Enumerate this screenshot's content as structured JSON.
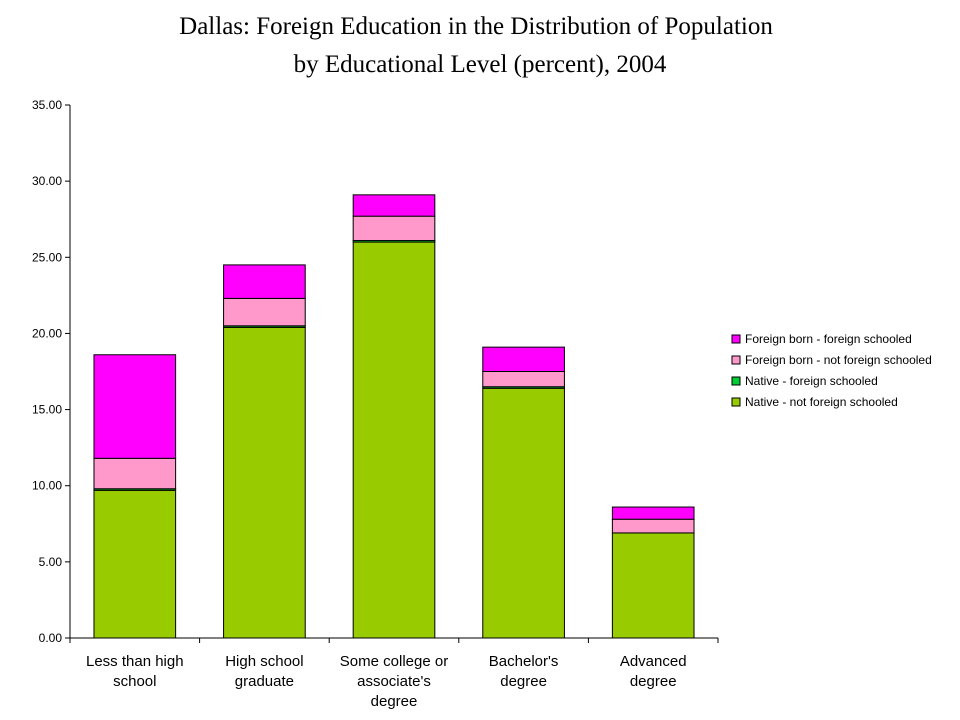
{
  "chart_data": {
    "type": "bar",
    "stacked": true,
    "title": [
      "Dallas: Foreign Education in the Distribution of Population",
      "by Educational Level (percent), 2004"
    ],
    "xlabel": "",
    "ylabel": "",
    "ylim": [
      0,
      35
    ],
    "yticks": [
      "0.00",
      "5.00",
      "10.00",
      "15.00",
      "20.00",
      "25.00",
      "30.00",
      "35.00"
    ],
    "grid": false,
    "legend_position": "right",
    "categories": [
      [
        "Less than high",
        "school"
      ],
      [
        "High school",
        "graduate"
      ],
      [
        "Some college or",
        "associate's",
        "degree"
      ],
      [
        "Bachelor's",
        "degree"
      ],
      [
        "Advanced",
        "degree"
      ]
    ],
    "series": [
      {
        "name": "Native - not foreign schooled",
        "color": "#99CC00",
        "values": [
          9.7,
          20.4,
          26.0,
          16.4,
          6.9
        ]
      },
      {
        "name": "Native - foreign schooled",
        "color": "#00CC33",
        "values": [
          0.1,
          0.1,
          0.1,
          0.1,
          0.0
        ]
      },
      {
        "name": "Foreign born - not foreign schooled",
        "color": "#FF99CC",
        "values": [
          2.0,
          1.8,
          1.6,
          1.0,
          0.9
        ]
      },
      {
        "name": "Foreign born - foreign schooled",
        "color": "#FF00FF",
        "values": [
          6.8,
          2.2,
          1.4,
          1.6,
          0.8
        ]
      }
    ],
    "legend_order": [
      3,
      2,
      1,
      0
    ]
  }
}
